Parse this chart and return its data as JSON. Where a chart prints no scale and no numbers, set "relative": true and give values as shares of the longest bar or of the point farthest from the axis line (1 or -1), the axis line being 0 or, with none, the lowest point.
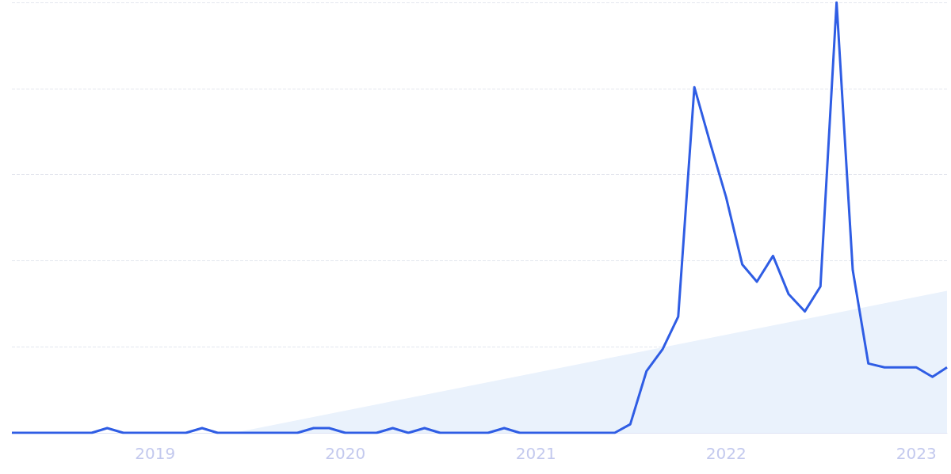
{
  "chart_data": {
    "type": "line",
    "relative": true,
    "grid": "y",
    "marker": "none",
    "line_style": "solid",
    "x": [
      "2018-04",
      "2018-05",
      "2018-06",
      "2018-07",
      "2018-08",
      "2018-09",
      "2018-10",
      "2018-11",
      "2018-12",
      "2019-01",
      "2019-02",
      "2019-03",
      "2019-04",
      "2019-05",
      "2019-06",
      "2019-07",
      "2019-08",
      "2019-09",
      "2019-10",
      "2019-11",
      "2019-12",
      "2020-01",
      "2020-02",
      "2020-03",
      "2020-04",
      "2020-05",
      "2020-06",
      "2020-07",
      "2020-08",
      "2020-09",
      "2020-10",
      "2020-11",
      "2020-12",
      "2021-01",
      "2021-02",
      "2021-03",
      "2021-04",
      "2021-05",
      "2021-06",
      "2021-07",
      "2021-08",
      "2021-09",
      "2021-10",
      "2021-11",
      "2021-12",
      "2022-01",
      "2022-02",
      "2022-03",
      "2022-04",
      "2022-05",
      "2022-06",
      "2022-07",
      "2022-08",
      "2022-09",
      "2022-10",
      "2022-11",
      "2022-12",
      "2023-01",
      "2023-02",
      "2023-03"
    ],
    "xlim": [
      "2018-04",
      "2023-03"
    ],
    "xticks": [
      "2019",
      "2020",
      "2021",
      "2022",
      "2023"
    ],
    "series": [
      {
        "type": "area",
        "color": "#eaf2fc",
        "x": [
          "2019-06",
          "2023-03"
        ],
        "values": [
          0,
          0.33
        ]
      },
      {
        "color": "#2f5de4",
        "values": [
          0,
          0,
          0,
          0,
          0,
          0,
          0.011,
          0,
          0,
          0,
          0,
          0,
          0.011,
          0,
          0,
          0,
          0,
          0,
          0,
          0.011,
          0.011,
          0,
          0,
          0,
          0.011,
          0,
          0.011,
          0,
          0,
          0,
          0,
          0.011,
          0,
          0,
          0,
          0,
          0,
          0,
          0,
          0.02,
          0.143,
          0.194,
          0.27,
          0.803,
          0.675,
          0.547,
          0.391,
          0.351,
          0.411,
          0.322,
          0.282,
          0.34,
          1,
          0.378,
          0.161,
          0.152,
          0.152,
          0.152,
          0.13,
          0.152
        ]
      }
    ]
  }
}
